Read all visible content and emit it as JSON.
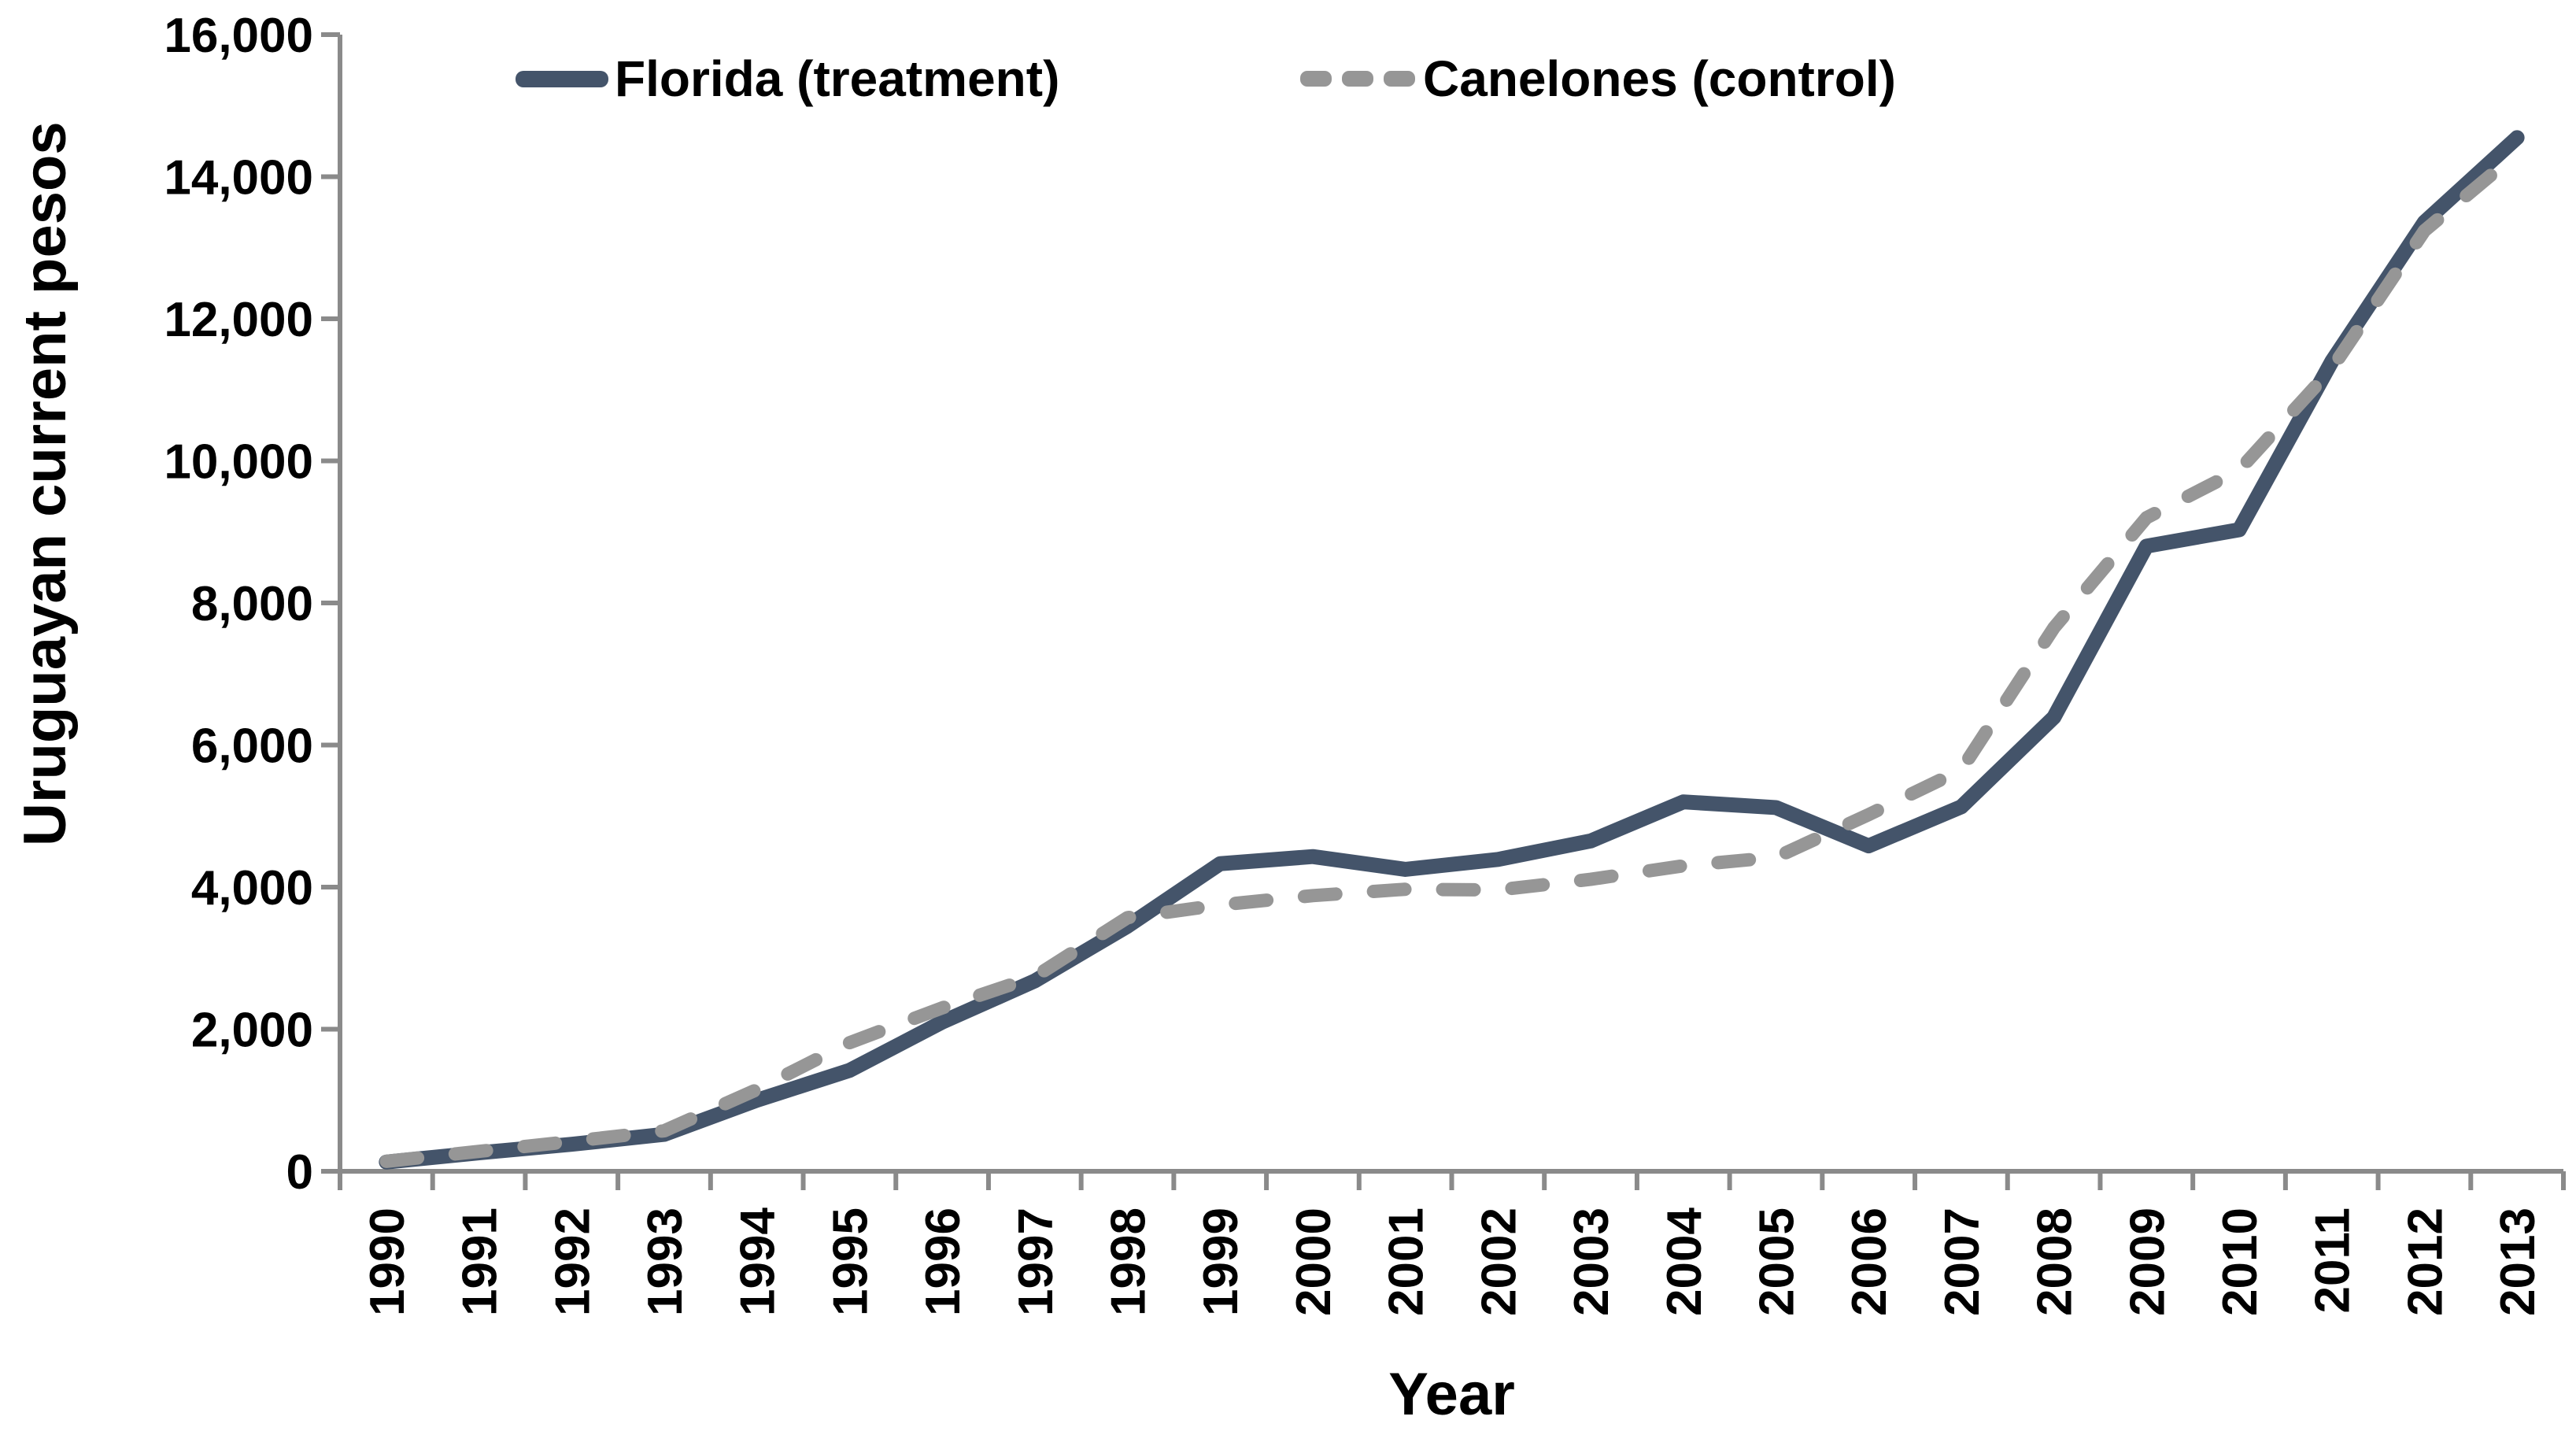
{
  "chart_data": {
    "type": "line",
    "x": [
      1990,
      1991,
      1992,
      1993,
      1994,
      1995,
      1996,
      1997,
      1998,
      1999,
      2000,
      2001,
      2002,
      2003,
      2004,
      2005,
      2006,
      2007,
      2008,
      2009,
      2010,
      2011,
      2012,
      2013
    ],
    "x_tick_labels": [
      "1990",
      "1991",
      "1992",
      "1993",
      "1994",
      "1995",
      "1996",
      "1997",
      "1998",
      "1999",
      "2000",
      "2001",
      "2002",
      "2003",
      "2004",
      "2005",
      "2006",
      "2007",
      "2008",
      "2009",
      "2010",
      "2011",
      "2012",
      "2013"
    ],
    "series": [
      {
        "name": "Florida (treatment)",
        "style": "solid",
        "color": "#44546A",
        "values": [
          130,
          260,
          380,
          520,
          1000,
          1420,
          2100,
          2680,
          3450,
          4330,
          4430,
          4250,
          4390,
          4650,
          5200,
          5120,
          4580,
          5130,
          6390,
          8800,
          9030,
          11400,
          13360,
          14550
        ]
      },
      {
        "name": "Canelones (control)",
        "style": "dashed",
        "color": "#969696",
        "values": [
          140,
          280,
          420,
          570,
          1150,
          1810,
          2300,
          2740,
          3570,
          3750,
          3880,
          3970,
          3960,
          4110,
          4300,
          4420,
          5020,
          5650,
          7650,
          9200,
          9870,
          11300,
          13240,
          14330
        ]
      }
    ],
    "title": "",
    "xlabel": "Year",
    "ylabel": "Uruguayan current pesos",
    "ylim": [
      0,
      16000
    ],
    "ytick_step": 2000,
    "ytick_labels": [
      "0",
      "2,000",
      "4,000",
      "6,000",
      "8,000",
      "10,000",
      "12,000",
      "14,000",
      "16,000"
    ],
    "grid": false,
    "legend_position": "top-inside"
  },
  "legend": {
    "florida": "Florida (treatment)",
    "canelones": "Canelones (control)"
  },
  "axes": {
    "x_title": "Year",
    "y_title": "Uruguayan current pesos",
    "axis_color": "#8A8A8A",
    "text_color": "#000000"
  },
  "colors": {
    "florida_line": "#44546A",
    "canelones_line": "#969696"
  }
}
